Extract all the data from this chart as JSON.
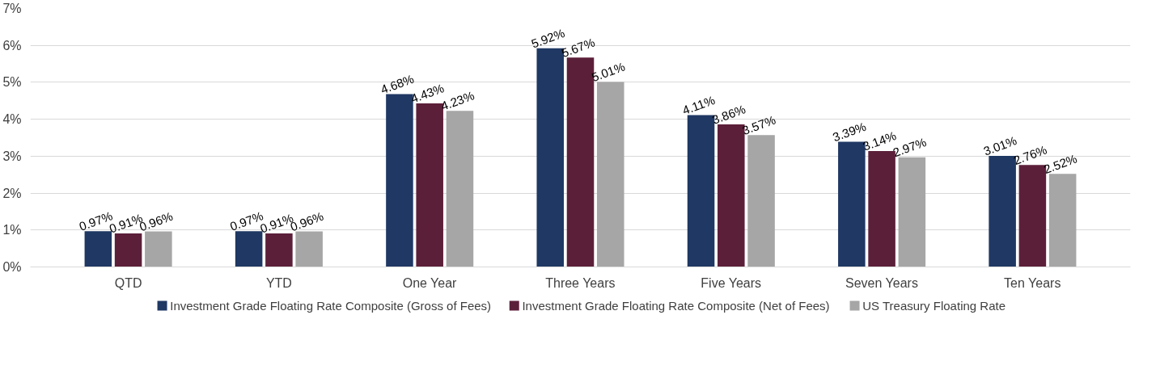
{
  "chart_data": {
    "type": "bar",
    "categories": [
      "QTD",
      "YTD",
      "One Year",
      "Three Years",
      "Five Years",
      "Seven Years",
      "Ten Years"
    ],
    "series": [
      {
        "name": "Investment Grade Floating Rate Composite (Gross of Fees)",
        "color": "#1f3864",
        "values": [
          0.97,
          0.97,
          4.68,
          5.92,
          4.11,
          3.39,
          3.01
        ],
        "value_labels": [
          "0.97%",
          "0.97%",
          "4.68%",
          "5.92%",
          "4.11%",
          "3.39%",
          "3.01%"
        ]
      },
      {
        "name": "Investment Grade Floating Rate Composite (Net of Fees)",
        "color": "#5c1f3a",
        "values": [
          0.91,
          0.91,
          4.43,
          5.67,
          3.86,
          3.14,
          2.76
        ],
        "value_labels": [
          "0.91%",
          "0.91%",
          "4.43%",
          "5.67%",
          "3.86%",
          "3.14%",
          "2.76%"
        ]
      },
      {
        "name": "US Treasury Floating Rate",
        "color": "#a6a6a6",
        "values": [
          0.96,
          0.96,
          4.23,
          5.01,
          3.57,
          2.97,
          2.52
        ],
        "value_labels": [
          "0.96%",
          "0.96%",
          "4.23%",
          "5.01%",
          "3.57%",
          "2.97%",
          "2.52%"
        ]
      }
    ],
    "ylim": [
      0,
      7
    ],
    "yticks": [
      {
        "value": 0,
        "label": "0%"
      },
      {
        "value": 1,
        "label": "1%"
      },
      {
        "value": 2,
        "label": "2%"
      },
      {
        "value": 3,
        "label": "3%"
      },
      {
        "value": 4,
        "label": "4%"
      },
      {
        "value": 5,
        "label": "5%"
      },
      {
        "value": 6,
        "label": "6%"
      },
      {
        "value": 7,
        "label": "7%"
      }
    ],
    "grid": "y",
    "legend": "bottom"
  }
}
